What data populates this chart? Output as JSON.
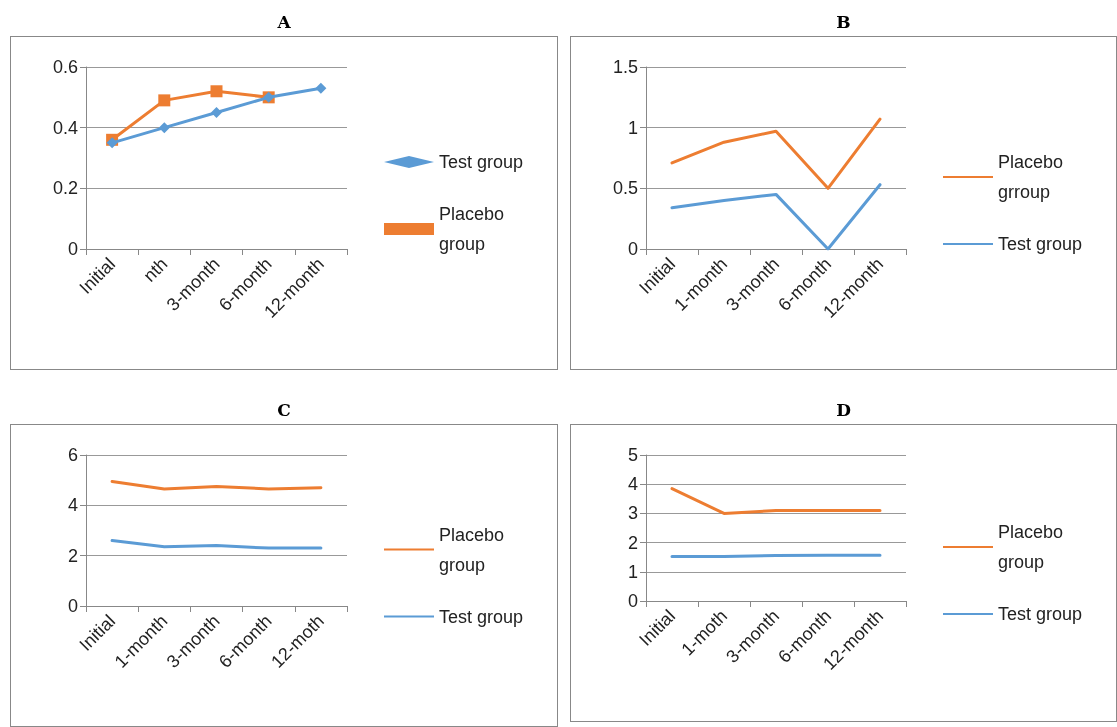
{
  "chart_data": [
    {
      "type": "line",
      "title": "A",
      "categories": [
        "Initial",
        "nth",
        "3-month",
        "6-month",
        "12-month"
      ],
      "series": [
        {
          "name": "Test group",
          "color": "#5b9bd5",
          "marker": "diamond",
          "values": [
            0.35,
            0.4,
            0.45,
            0.5,
            0.53
          ]
        },
        {
          "name": "Placebo group",
          "color": "#ed7d31",
          "marker": "square",
          "values": [
            0.36,
            0.49,
            0.52,
            0.5,
            null
          ]
        }
      ],
      "ylim": [
        0,
        0.6
      ],
      "yticks": [
        0,
        0.2,
        0.4,
        0.6
      ],
      "grid": "y",
      "legend": "right"
    },
    {
      "type": "line",
      "title": "B",
      "categories": [
        "Initial",
        "1-month",
        "3-month",
        "6-month",
        "12-month"
      ],
      "series": [
        {
          "name": "Placebo grroup",
          "color": "#ed7d31",
          "values": [
            0.71,
            0.88,
            0.97,
            0.5,
            1.07
          ]
        },
        {
          "name": "Test group",
          "color": "#5b9bd5",
          "values": [
            0.34,
            0.4,
            0.45,
            0.0,
            0.53
          ]
        }
      ],
      "ylim": [
        0,
        1.5
      ],
      "yticks": [
        0,
        0.5,
        1,
        1.5
      ],
      "grid": "y",
      "legend": "right"
    },
    {
      "type": "line",
      "title": "C",
      "categories": [
        "Initial",
        "1-month",
        "3-month",
        "6-month",
        "12-moth"
      ],
      "series": [
        {
          "name": "Placebo group",
          "color": "#ed7d31",
          "values": [
            4.95,
            4.65,
            4.75,
            4.65,
            4.7
          ]
        },
        {
          "name": "Test group",
          "color": "#5b9bd5",
          "values": [
            2.6,
            2.35,
            2.4,
            2.3,
            2.3
          ]
        }
      ],
      "ylim": [
        0,
        6
      ],
      "yticks": [
        0,
        2,
        4,
        6
      ],
      "grid": "y",
      "legend": "right"
    },
    {
      "type": "line",
      "title": "D",
      "categories": [
        "Initial",
        "1-moth",
        "3-month",
        "6-month",
        "12-month"
      ],
      "series": [
        {
          "name": "Placebo group",
          "color": "#ed7d31",
          "values": [
            3.85,
            3.0,
            3.1,
            3.1,
            3.1
          ]
        },
        {
          "name": "Test group",
          "color": "#5b9bd5",
          "values": [
            1.52,
            1.52,
            1.56,
            1.57,
            1.57
          ]
        }
      ],
      "ylim": [
        0,
        5
      ],
      "yticks": [
        0,
        1,
        2,
        3,
        4,
        5
      ],
      "grid": "y",
      "legend": "right"
    }
  ]
}
